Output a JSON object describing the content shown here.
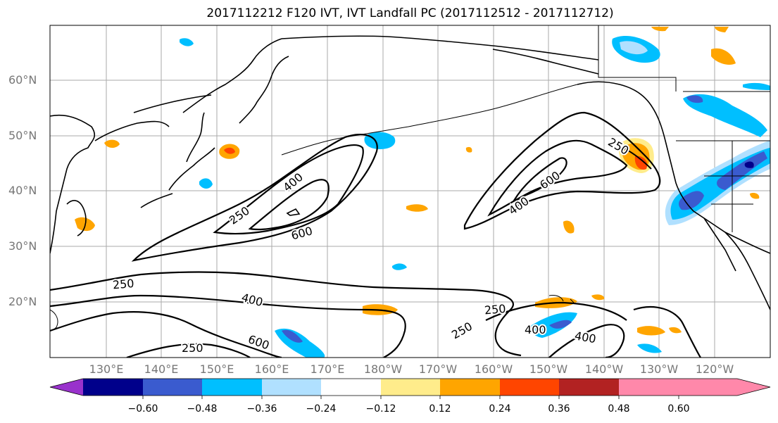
{
  "title": "2017112212 F120 IVT, IVT Landfall PC (2017112512 - 2017112712)",
  "lat_labels": [
    "60°N",
    "50°N",
    "40°N",
    "30°N",
    "20°N"
  ],
  "lon_labels": [
    "130°E",
    "140°E",
    "150°E",
    "160°E",
    "170°E",
    "180°W",
    "170°W",
    "160°W",
    "150°W",
    "140°W",
    "130°W",
    "120°W"
  ],
  "contour_labels": [
    "250",
    "400",
    "600",
    "250",
    "400",
    "600",
    "250",
    "250",
    "400",
    "600",
    "250",
    "400",
    "400",
    "250"
  ],
  "colorbar": {
    "ticks": [
      "−0.60",
      "−0.48",
      "−0.36",
      "−0.24",
      "−0.12",
      "0.12",
      "0.24",
      "0.36",
      "0.48",
      "0.60"
    ],
    "colors": [
      "#9932cc",
      "#00008b",
      "#3a5bcf",
      "#00bfff",
      "#b0e0ff",
      "#ffffff",
      "#ffec8b",
      "#ffa500",
      "#ff4500",
      "#b22222",
      "#ff88aa"
    ]
  },
  "colors": {
    "positive_low": "#ffec8b",
    "positive_mid": "#ffa500",
    "positive_high": "#ff4500",
    "negative_low": "#b0e0ff",
    "negative_mid": "#00bfff",
    "negative_high": "#3a5bcf",
    "negative_max": "#00008b"
  }
}
